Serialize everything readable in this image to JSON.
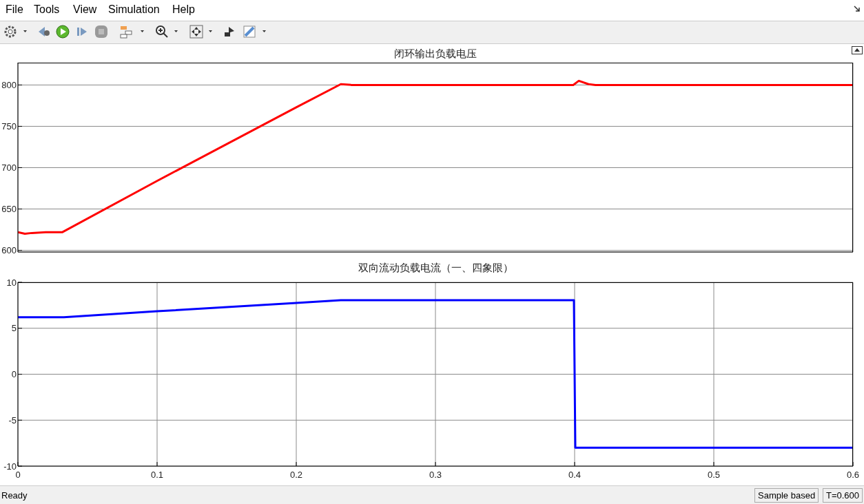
{
  "chart_data": [
    {
      "type": "line",
      "title": "闭环输出负载电压",
      "xlim": [
        0,
        0.6
      ],
      "xticks": [
        0,
        0.1,
        0.2,
        0.3,
        0.4,
        0.5,
        0.6
      ],
      "ylim": [
        598,
        827
      ],
      "yticks": [
        600,
        650,
        700,
        750,
        800
      ],
      "grid": true,
      "tick_labels": "y",
      "annotations": [
        "File",
        "Tools",
        "View",
        "Simulation",
        "Help"
      ],
      "series": [
        {
          "color": "#ff0000",
          "x": [
            0,
            0.005,
            0.01,
            0.02,
            0.032,
            0.1,
            0.2,
            0.232,
            0.24,
            0.3,
            0.399,
            0.403,
            0.41,
            0.415,
            0.5,
            0.6
          ],
          "values": [
            622,
            620,
            621,
            622,
            622,
            684,
            773,
            801,
            800,
            800,
            800,
            805,
            801,
            800,
            800,
            800
          ]
        }
      ]
    },
    {
      "type": "line",
      "title": "双向流动负载电流（一、四象限）",
      "xlim": [
        0,
        0.6
      ],
      "xticks": [
        0,
        0.1,
        0.2,
        0.3,
        0.4,
        0.5,
        0.6
      ],
      "ylim": [
        -10,
        10
      ],
      "yticks": [
        -10,
        -5,
        0,
        5,
        10
      ],
      "grid": true,
      "annotations": [
        "Ready",
        "Sample based",
        "T=0.600"
      ],
      "series": [
        {
          "color": "#0000ff",
          "x": [
            0,
            0.033,
            0.1,
            0.2,
            0.232,
            0.3,
            0.3995,
            0.4005,
            0.5,
            0.6
          ],
          "values": [
            6.2,
            6.2,
            6.85,
            7.75,
            8.05,
            8.05,
            8.05,
            -8,
            -8,
            -8
          ]
        }
      ]
    }
  ]
}
